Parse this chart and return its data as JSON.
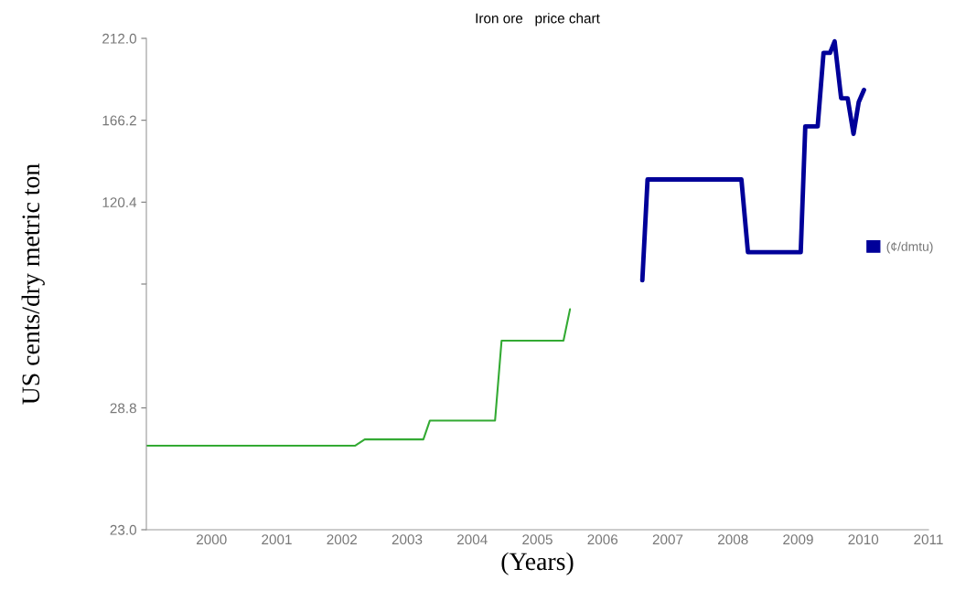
{
  "chart_data": [
    {
      "type": "line",
      "title": "Iron ore   price chart",
      "ylabel": "US cents/dry metric ton",
      "xlim": [
        1999,
        2011
      ],
      "xticks": [
        2000,
        2001,
        2002,
        2003,
        2004,
        2005,
        2006,
        2007,
        2008,
        2009,
        2010,
        2011
      ],
      "tick_labels": "y",
      "ylim": [
        74.6,
        212.0
      ],
      "yticks": [
        {
          "value": 74.6,
          "label": null
        },
        120.4,
        166.2,
        {
          "value": 212.0,
          "label": "212.0"
        }
      ],
      "legend": "right",
      "series": [
        {
          "name": "(¢/dmtu)",
          "color": "#000099",
          "x": [
            2006.61,
            2006.69,
            2008.13,
            2008.23,
            2009.04,
            2009.11,
            2009.3,
            2009.39,
            2009.49,
            2009.56,
            2009.66,
            2009.76,
            2009.85,
            2009.93,
            2010.01
          ],
          "values": [
            76.7,
            133.1,
            133.1,
            92.4,
            92.4,
            162.8,
            162.8,
            203.9,
            203.9,
            210.3,
            178.5,
            178.5,
            158.6,
            176.4,
            183.1
          ]
        }
      ]
    },
    {
      "type": "line",
      "xlabel": "(Years)",
      "xlim": [
        1999,
        2011
      ],
      "xticks": [
        2000,
        2001,
        2002,
        2003,
        2004,
        2005,
        2006,
        2007,
        2008,
        2009,
        2010,
        2011
      ],
      "ylim": [
        23.0,
        34.7
      ],
      "yticks": [
        {
          "value": 23.0,
          "label": "23.0"
        },
        28.8
      ],
      "series": [
        {
          "color": "#33aa33",
          "x": [
            1999.0,
            2002.2,
            2002.35,
            2003.25,
            2003.35,
            2004.35,
            2004.45,
            2005.4,
            2005.5
          ],
          "values": [
            27.0,
            27.0,
            27.3,
            27.3,
            28.2,
            28.2,
            32.0,
            32.0,
            33.5
          ]
        }
      ]
    }
  ]
}
